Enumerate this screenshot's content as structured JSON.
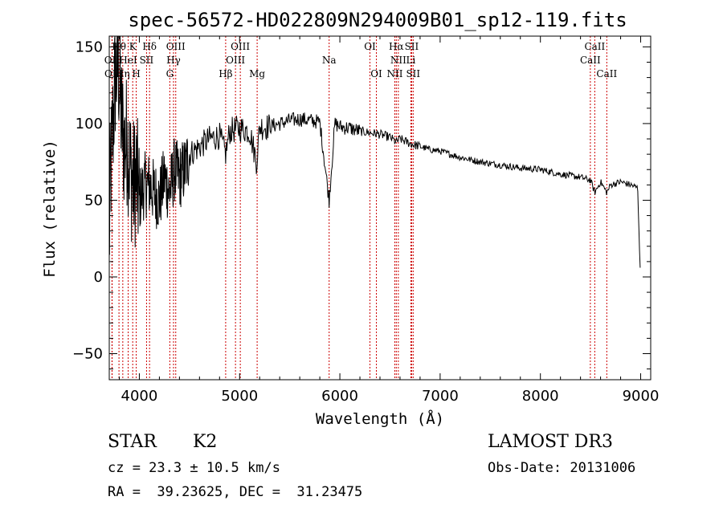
{
  "chart_data": {
    "type": "line",
    "title": "spec-56572-HD022809N294009B01_sp12-119.fits",
    "xlabel": "Wavelength (Å)",
    "ylabel": "Flux (relative)",
    "xlim": [
      3700,
      9100
    ],
    "ylim": [
      -67,
      157
    ],
    "xticks": [
      4000,
      5000,
      6000,
      7000,
      8000,
      9000
    ],
    "yticks": [
      -50,
      0,
      50,
      100,
      150
    ],
    "grid": false,
    "spectrum": {
      "name": "flux",
      "x": [
        3700,
        3710,
        3730,
        3760,
        3790,
        3820,
        3850,
        3880,
        3910,
        3940,
        3970,
        4000,
        4050,
        4100,
        4150,
        4200,
        4250,
        4300,
        4350,
        4400,
        4450,
        4500,
        4600,
        4700,
        4800,
        4860,
        4900,
        5000,
        5100,
        5170,
        5200,
        5300,
        5400,
        5500,
        5600,
        5700,
        5800,
        5893,
        5950,
        6000,
        6100,
        6200,
        6300,
        6400,
        6500,
        6563,
        6600,
        6700,
        6800,
        6900,
        7000,
        7200,
        7400,
        7600,
        7800,
        8000,
        8200,
        8400,
        8500,
        8542,
        8600,
        8662,
        8700,
        8800,
        8900,
        8970,
        8990,
        9000
      ],
      "y": [
        20,
        60,
        90,
        130,
        140,
        105,
        85,
        90,
        70,
        60,
        65,
        50,
        60,
        60,
        55,
        50,
        65,
        55,
        70,
        65,
        70,
        80,
        85,
        90,
        92,
        80,
        95,
        97,
        95,
        75,
        98,
        98,
        100,
        102,
        103,
        102,
        101,
        50,
        100,
        98,
        97,
        95,
        94,
        93,
        91,
        88,
        90,
        87,
        85,
        83,
        82,
        78,
        75,
        73,
        71,
        70,
        67,
        65,
        63,
        55,
        62,
        55,
        60,
        62,
        60,
        58,
        15,
        -3
      ]
    },
    "lines": [
      {
        "label": "Hθ",
        "wavelength": 3797,
        "row": 0
      },
      {
        "label": "OII",
        "wavelength": 3727,
        "row": 1
      },
      {
        "label": "OII",
        "wavelength": 3729,
        "row": 2
      },
      {
        "label": "K",
        "wavelength": 3934,
        "row": 0
      },
      {
        "label": "Hδ",
        "wavelength": 4102,
        "row": 0
      },
      {
        "label": "HeI",
        "wavelength": 3889,
        "row": 1
      },
      {
        "label": "SII",
        "wavelength": 4072,
        "row": 1
      },
      {
        "label": "Hη",
        "wavelength": 3835,
        "row": 2
      },
      {
        "label": "H",
        "wavelength": 3969,
        "row": 2
      },
      {
        "label": "OIII",
        "wavelength": 4363,
        "row": 0
      },
      {
        "label": "Hγ",
        "wavelength": 4341,
        "row": 1
      },
      {
        "label": "G",
        "wavelength": 4304,
        "row": 2
      },
      {
        "label": "OIII",
        "wavelength": 5007,
        "row": 0
      },
      {
        "label": "OIII",
        "wavelength": 4959,
        "row": 1
      },
      {
        "label": "Hβ",
        "wavelength": 4861,
        "row": 2
      },
      {
        "label": "Mg",
        "wavelength": 5175,
        "row": 2
      },
      {
        "label": "Na",
        "wavelength": 5893,
        "row": 1
      },
      {
        "label": "OI",
        "wavelength": 6300,
        "row": 0
      },
      {
        "label": "OI",
        "wavelength": 6364,
        "row": 2
      },
      {
        "label": "Hα",
        "wavelength": 6563,
        "row": 0
      },
      {
        "label": "SII",
        "wavelength": 6716,
        "row": 0
      },
      {
        "label": "NII",
        "wavelength": 6583,
        "row": 1
      },
      {
        "label": "Li",
        "wavelength": 6708,
        "row": 1
      },
      {
        "label": "NII",
        "wavelength": 6548,
        "row": 2
      },
      {
        "label": "SII",
        "wavelength": 6731,
        "row": 2
      },
      {
        "label": "CaII",
        "wavelength": 8542,
        "row": 0
      },
      {
        "label": "CaII",
        "wavelength": 8498,
        "row": 1
      },
      {
        "label": "CaII",
        "wavelength": 8662,
        "row": 2
      }
    ],
    "line_color": "#cc0000"
  },
  "info": {
    "class_label": "STAR",
    "subclass": "K2",
    "survey": "LAMOST DR3",
    "cz": "cz = 23.3 ± 10.5 km/s",
    "obs_date": "Obs-Date: 20131006",
    "coords": "RA =  39.23625, DEC =  31.23475"
  }
}
